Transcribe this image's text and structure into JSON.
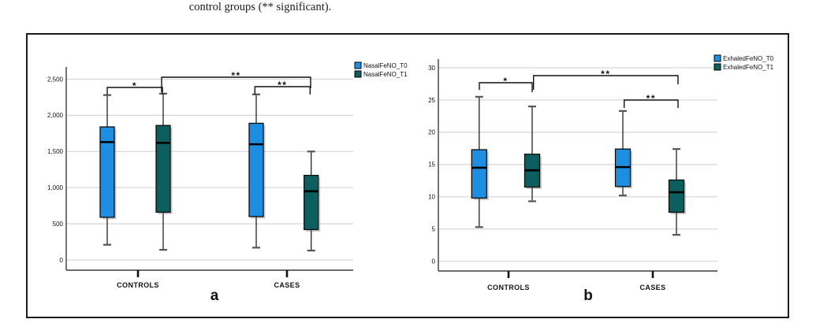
{
  "caption": "control groups (** significant).",
  "colors": {
    "t0_blue": "#1e8fe0",
    "t1_teal": "#0d5f5f"
  },
  "chart_data": [
    {
      "type": "boxplot",
      "panel_label": "a",
      "categories": [
        "CONTROLS",
        "CASES"
      ],
      "yticks": [
        0,
        500,
        1000,
        1500,
        2000,
        2500
      ],
      "ytick_labels": [
        "0",
        "500",
        "1,000",
        "1,500",
        "2,000",
        "2,500"
      ],
      "ylim": [
        0,
        2700
      ],
      "grid": true,
      "legend_position": "top-right",
      "series": [
        {
          "name": "NasalFeNO_T0",
          "color": "#1e8fe0",
          "boxes": [
            {
              "category": "CONTROLS",
              "min": 210,
              "q1": 590,
              "median": 1630,
              "q3": 1840,
              "max": 2280
            },
            {
              "category": "CASES",
              "min": 170,
              "q1": 600,
              "median": 1600,
              "q3": 1890,
              "max": 2290
            }
          ]
        },
        {
          "name": "NasalFeNO_T1",
          "color": "#0d5f5f",
          "boxes": [
            {
              "category": "CONTROLS",
              "min": 140,
              "q1": 660,
              "median": 1620,
              "q3": 1860,
              "max": 2300
            },
            {
              "category": "CASES",
              "min": 130,
              "q1": 420,
              "median": 950,
              "q3": 1170,
              "max": 1500
            }
          ]
        }
      ],
      "significance": [
        {
          "label": "*",
          "pair": [
            "CONTROLS NasalFeNO_T0",
            "CONTROLS NasalFeNO_T1"
          ]
        },
        {
          "label": "**",
          "pair": [
            "CONTROLS NasalFeNO_T1",
            "CASES NasalFeNO_T1"
          ]
        },
        {
          "label": "**",
          "pair": [
            "CASES NasalFeNO_T0",
            "CASES NasalFeNO_T1"
          ]
        }
      ]
    },
    {
      "type": "boxplot",
      "panel_label": "b",
      "categories": [
        "CONTROLS",
        "CASES"
      ],
      "yticks": [
        0,
        5,
        10,
        15,
        20,
        25,
        30
      ],
      "ytick_labels": [
        "0",
        "5",
        "10",
        "15",
        "20",
        "25",
        "30"
      ],
      "ylim": [
        0,
        31
      ],
      "grid": true,
      "legend_position": "top-right",
      "series": [
        {
          "name": "ExhaledFeNO_T0",
          "color": "#1e8fe0",
          "boxes": [
            {
              "category": "CONTROLS",
              "min": 5.3,
              "q1": 9.8,
              "median": 14.5,
              "q3": 17.3,
              "max": 25.5
            },
            {
              "category": "CASES",
              "min": 10.2,
              "q1": 11.6,
              "median": 14.6,
              "q3": 17.4,
              "max": 23.3
            }
          ]
        },
        {
          "name": "ExhaledFeNO_T1",
          "color": "#0d5f5f",
          "boxes": [
            {
              "category": "CONTROLS",
              "min": 9.3,
              "q1": 11.5,
              "median": 14.1,
              "q3": 16.6,
              "max": 24.0
            },
            {
              "category": "CASES",
              "min": 4.1,
              "q1": 7.6,
              "median": 10.7,
              "q3": 12.6,
              "max": 17.4
            }
          ]
        }
      ],
      "significance": [
        {
          "label": "*",
          "pair": [
            "CONTROLS ExhaledFeNO_T0",
            "CONTROLS ExhaledFeNO_T1"
          ]
        },
        {
          "label": "**",
          "pair": [
            "CONTROLS ExhaledFeNO_T1",
            "CASES ExhaledFeNO_T1"
          ]
        },
        {
          "label": "**",
          "pair": [
            "CASES ExhaledFeNO_T0",
            "CASES ExhaledFeNO_T1"
          ]
        }
      ]
    }
  ]
}
